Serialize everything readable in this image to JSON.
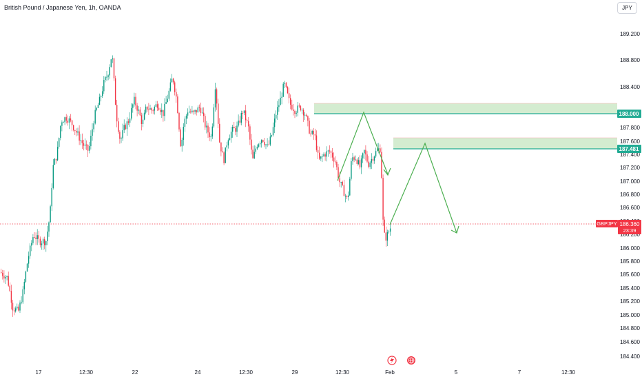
{
  "header": {
    "title": "British Pound / Japanese Yen, 1h, OANDA"
  },
  "currency_button": {
    "label": "JPY"
  },
  "price_axis": {
    "ticks": [
      "189.200",
      "188.800",
      "188.400",
      "188.000",
      "187.800",
      "187.600",
      "187.400",
      "187.200",
      "187.000",
      "186.800",
      "186.600",
      "186.400",
      "186.200",
      "186.000",
      "185.800",
      "185.600",
      "185.400",
      "185.200",
      "185.000",
      "184.800",
      "184.600",
      "184.400"
    ],
    "tick_values": [
      189.2,
      188.8,
      188.4,
      188.0,
      187.8,
      187.6,
      187.4,
      187.2,
      187.0,
      186.8,
      186.6,
      186.4,
      186.2,
      186.0,
      185.8,
      185.6,
      185.4,
      185.2,
      185.0,
      184.8,
      184.6,
      184.4
    ],
    "min": 184.4,
    "max": 189.2
  },
  "time_axis": {
    "labels": [
      "17",
      "12:30",
      "22",
      "24",
      "12:30",
      "29",
      "12:30",
      "Feb",
      "5",
      "7",
      "12:30"
    ]
  },
  "levels": [
    {
      "label": "188.000",
      "value": 188.0,
      "color": "#22ab94"
    },
    {
      "label": "187.481",
      "value": 187.481,
      "color": "#22ab94"
    }
  ],
  "current_price": {
    "symbol": "GBPJPY",
    "price": "186.360",
    "countdown": "23:39",
    "value": 186.36,
    "color": "#f23645"
  },
  "zones": [
    {
      "name": "upper-resistance-zone",
      "low": 187.98,
      "high": 188.28
    },
    {
      "name": "lower-resistance-zone",
      "low": 187.48,
      "high": 187.8
    }
  ],
  "colors": {
    "up": "#089981",
    "down": "#f23645",
    "zone_fill": "#d4ecd0",
    "zone_border": "#22ab94",
    "projection": "#4caf50",
    "axis_text": "#131722"
  },
  "icons": [
    "lightning-icon",
    "globe-icon"
  ]
}
